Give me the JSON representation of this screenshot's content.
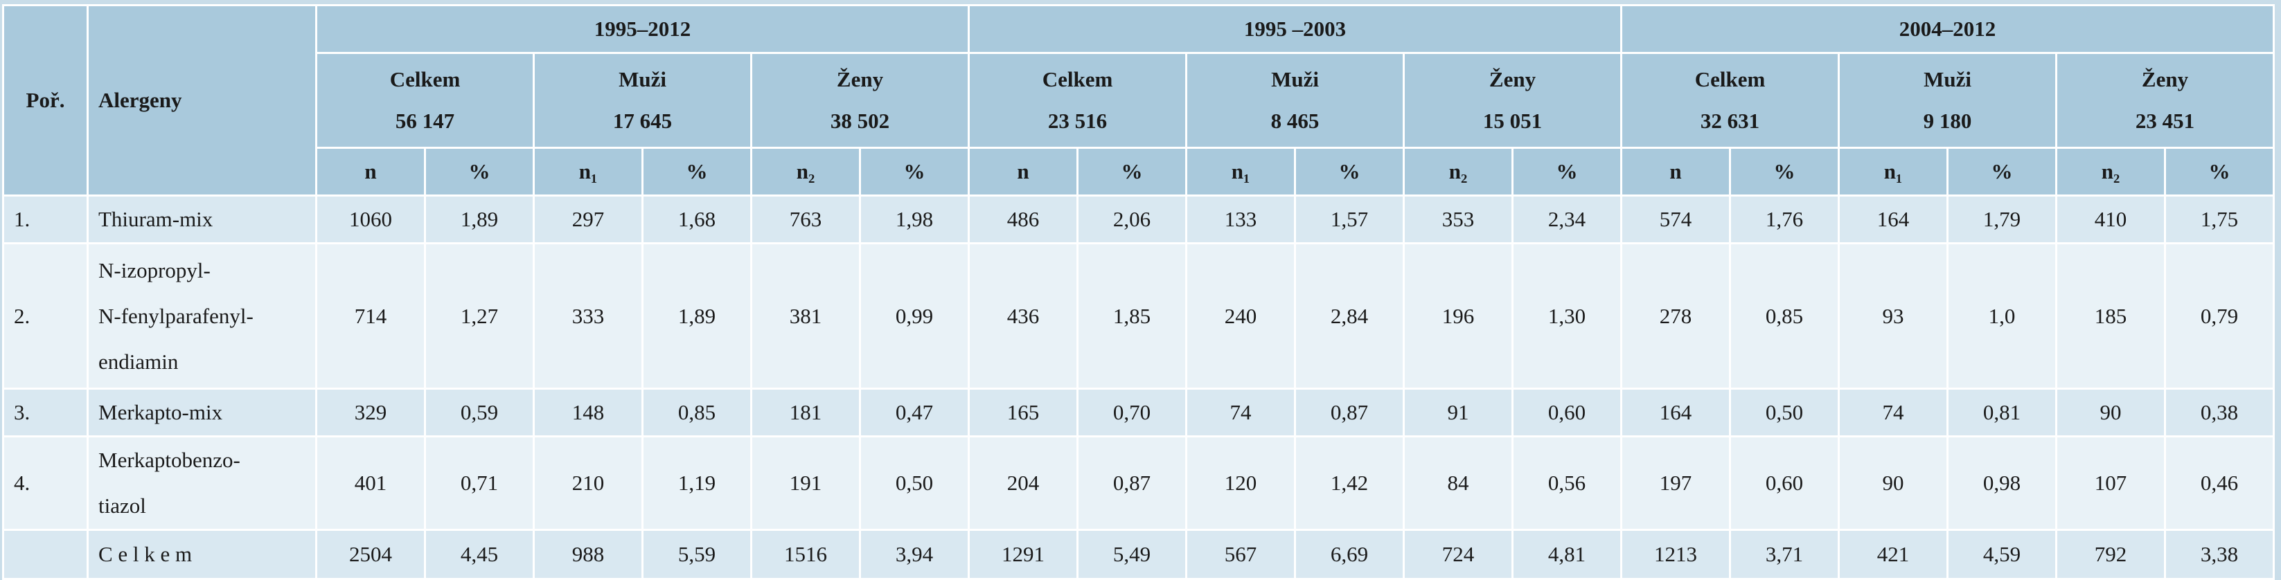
{
  "header": {
    "index": "Poř.",
    "allergen": "Alergeny",
    "periods": [
      {
        "label": "1995–2012",
        "groups": [
          {
            "label": "Celkem",
            "total": "56 147",
            "cols": [
              "n",
              "%"
            ]
          },
          {
            "label": "Muži",
            "total": "17 645",
            "cols": [
              "n₁",
              "%"
            ]
          },
          {
            "label": "Ženy",
            "total": "38 502",
            "cols": [
              "n₂",
              "%"
            ]
          }
        ]
      },
      {
        "label": "1995 –2003",
        "groups": [
          {
            "label": "Celkem",
            "total": "23 516",
            "cols": [
              "n",
              "%"
            ]
          },
          {
            "label": "Muži",
            "total": "8 465",
            "cols": [
              "n₁",
              "%"
            ]
          },
          {
            "label": "Ženy",
            "total": "15 051",
            "cols": [
              "n₂",
              "%"
            ]
          }
        ]
      },
      {
        "label": "2004–2012",
        "groups": [
          {
            "label": "Celkem",
            "total": "32 631",
            "cols": [
              "n",
              "%"
            ]
          },
          {
            "label": "Muži",
            "total": "9 180",
            "cols": [
              "n₁",
              "%"
            ]
          },
          {
            "label": "Ženy",
            "total": "23 451",
            "cols": [
              "n₂",
              "%"
            ]
          }
        ]
      }
    ]
  },
  "rows": [
    {
      "index": "1.",
      "allergen": [
        "Thiuram-mix"
      ],
      "values": [
        "1060",
        "1,89",
        "297",
        "1,68",
        "763",
        "1,98",
        "486",
        "2,06",
        "133",
        "1,57",
        "353",
        "2,34",
        "574",
        "1,76",
        "164",
        "1,79",
        "410",
        "1,75"
      ]
    },
    {
      "index": "2.",
      "allergen": [
        "N-izopropyl-",
        "N-fenylparafenyl-",
        "endiamin"
      ],
      "values": [
        "714",
        "1,27",
        "333",
        "1,89",
        "381",
        "0,99",
        "436",
        "1,85",
        "240",
        "2,84",
        "196",
        "1,30",
        "278",
        "0,85",
        "93",
        "1,0",
        "185",
        "0,79"
      ]
    },
    {
      "index": "3.",
      "allergen": [
        "Merkapto-mix"
      ],
      "values": [
        "329",
        "0,59",
        "148",
        "0,85",
        "181",
        "0,47",
        "165",
        "0,70",
        "74",
        "0,87",
        "91",
        "0,60",
        "164",
        "0,50",
        "74",
        "0,81",
        "90",
        "0,38"
      ]
    },
    {
      "index": "4.",
      "allergen": [
        "Merkaptobenzo-",
        "tiazol"
      ],
      "values": [
        "401",
        "0,71",
        "210",
        "1,19",
        "191",
        "0,50",
        "204",
        "0,87",
        "120",
        "1,42",
        "84",
        "0,56",
        "197",
        "0,60",
        "90",
        "0,98",
        "107",
        "0,46"
      ]
    },
    {
      "allergen": [
        "C e l k e m"
      ],
      "values": [
        "2504",
        "4,45",
        "988",
        "5,59",
        "1516",
        "3,94",
        "1291",
        "5,49",
        "567",
        "6,69",
        "724",
        "4,81",
        "1213",
        "3,71",
        "421",
        "4,59",
        "792",
        "3,38"
      ]
    }
  ]
}
